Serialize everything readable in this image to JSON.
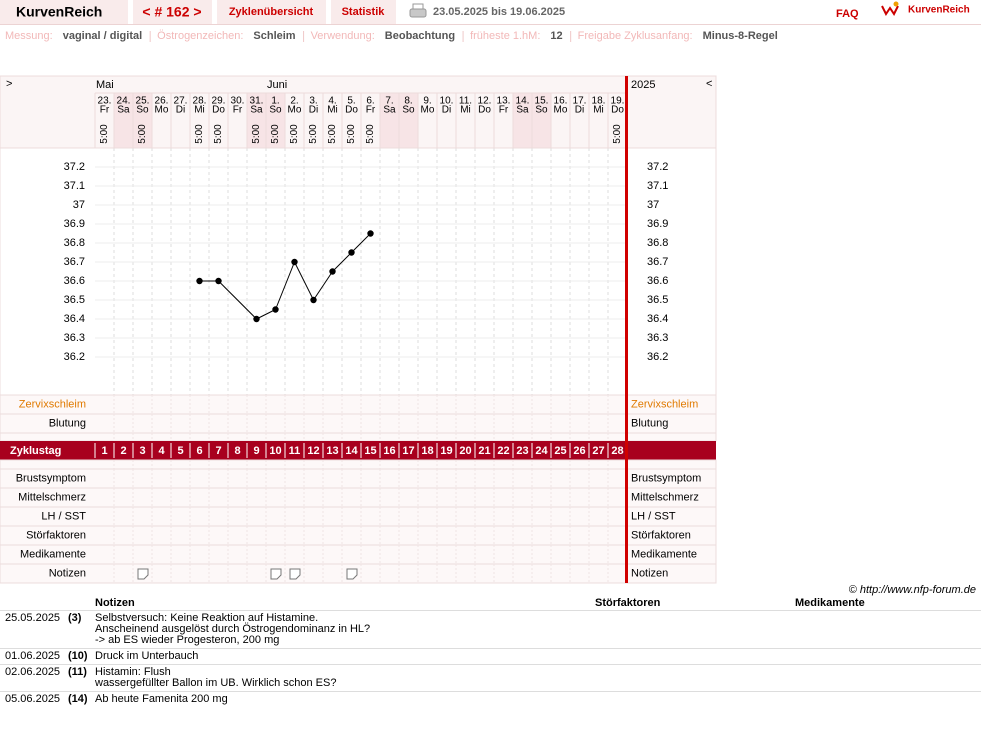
{
  "header": {
    "brand": "KurvenReich",
    "cycle_nav": "< # 162 >",
    "tabs": [
      "Zyklenübersicht",
      "Statistik"
    ],
    "date_range": "23.05.2025 bis 19.06.2025",
    "faq": "FAQ",
    "logo": "KurvenReich"
  },
  "settings": [
    {
      "label": "Messung:",
      "value": "vaginal / digital"
    },
    {
      "label": "Östrogenzeichen:",
      "value": "Schleim"
    },
    {
      "label": "Verwendung:",
      "value": "Beobachtung"
    },
    {
      "label": "früheste 1.hM:",
      "value": "12"
    },
    {
      "label": "Freigabe Zyklusanfang:",
      "value": "Minus-8-Regel"
    }
  ],
  "chart_data": {
    "type": "line",
    "nav_left": ">",
    "nav_right": "<",
    "year": "2025",
    "months": [
      "Mai",
      "Juni"
    ],
    "categories": [
      "23.",
      "24.",
      "25.",
      "26.",
      "27.",
      "28.",
      "29.",
      "30.",
      "31.",
      "1.",
      "2.",
      "3.",
      "4.",
      "5.",
      "6.",
      "7.",
      "8.",
      "9.",
      "10.",
      "11.",
      "12.",
      "13.",
      "14.",
      "15.",
      "16.",
      "17.",
      "18.",
      "19."
    ],
    "weekdays": [
      "Fr",
      "Sa",
      "So",
      "Mo",
      "Di",
      "Mi",
      "Do",
      "Fr",
      "Sa",
      "So",
      "Mo",
      "Di",
      "Mi",
      "Do",
      "Fr",
      "Sa",
      "So",
      "Mo",
      "Di",
      "Mi",
      "Do",
      "Fr",
      "Sa",
      "So",
      "Mo",
      "Di",
      "Mi",
      "Do"
    ],
    "highlight": [
      false,
      true,
      true,
      false,
      false,
      false,
      false,
      false,
      true,
      true,
      false,
      false,
      false,
      false,
      false,
      true,
      true,
      false,
      false,
      false,
      false,
      false,
      true,
      true,
      false,
      false,
      false,
      false
    ],
    "times": [
      "5:00",
      null,
      "5:00",
      null,
      null,
      "5:00",
      "5:00",
      null,
      "5:00",
      "5:00",
      "5:00",
      "5:00",
      "5:00",
      "5:00",
      "5:00",
      null,
      null,
      null,
      null,
      null,
      null,
      null,
      null,
      null,
      null,
      null,
      null,
      "5:00"
    ],
    "values": [
      null,
      null,
      null,
      null,
      null,
      36.6,
      36.6,
      null,
      36.4,
      36.45,
      36.7,
      36.5,
      36.65,
      36.75,
      36.85,
      null,
      null,
      null,
      null,
      null,
      null,
      null,
      null,
      null,
      null,
      null,
      null,
      null
    ],
    "color": "#000000",
    "ylim": [
      36.0,
      37.3
    ],
    "yticks": [
      36.2,
      36.3,
      36.4,
      36.5,
      36.6,
      36.7,
      36.8,
      36.9,
      37,
      37.1,
      37.2
    ],
    "grid": true,
    "upper_rows": [
      "Zervixschleim",
      "Blutung"
    ],
    "cycle_label": "Zyklustag",
    "cycle_days": [
      1,
      2,
      3,
      4,
      5,
      6,
      7,
      8,
      9,
      10,
      11,
      12,
      13,
      14,
      15,
      16,
      17,
      18,
      19,
      20,
      21,
      22,
      23,
      24,
      25,
      26,
      27,
      28
    ],
    "lower_rows": [
      "Brustsymptom",
      "Mittelschmerz",
      "LH / SST",
      "Störfaktoren",
      "Medikamente",
      "Notizen"
    ]
  },
  "copyright": "© http://www.nfp-forum.de",
  "notes_table": {
    "headers": [
      "Notizen",
      "Störfaktoren",
      "Medikamente"
    ],
    "rows": [
      {
        "date": "25.05.2025",
        "cycle_day": 3,
        "cycle_day_label": "(3)",
        "lines": [
          "Selbstversuch: Keine Reaktion auf Histamine.",
          "Anscheinend ausgelöst durch Östrogendominanz in HL?",
          "-> ab ES wieder Progesteron, 200 mg"
        ]
      },
      {
        "date": "01.06.2025",
        "cycle_day": 10,
        "cycle_day_label": "(10)",
        "lines": [
          "Druck im Unterbauch"
        ]
      },
      {
        "date": "02.06.2025",
        "cycle_day": 11,
        "cycle_day_label": "(11)",
        "lines": [
          "Histamin: Flush",
          "wassergefüllter Ballon im UB. Wirklich schon ES?"
        ]
      },
      {
        "date": "05.06.2025",
        "cycle_day": 14,
        "cycle_day_label": "(14)",
        "lines": [
          "Ab heute Famenita 200 mg"
        ]
      }
    ]
  }
}
